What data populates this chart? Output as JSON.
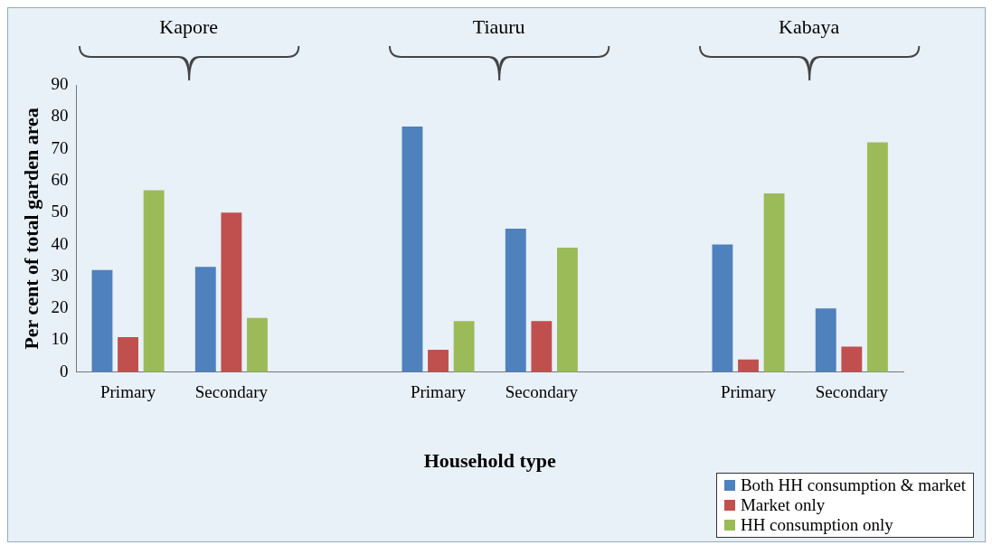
{
  "chart_data": {
    "type": "bar",
    "xlabel": "Household type",
    "ylabel": "Per cent of total garden area",
    "categories": [
      "Primary",
      "Secondary",
      null,
      "Primary",
      "Secondary",
      null,
      "Primary",
      "Secondary"
    ],
    "series": [
      {
        "name": "Both HH consumption & market",
        "color": "#4f81bd",
        "values": [
          32,
          33,
          null,
          77,
          45,
          null,
          40,
          20
        ]
      },
      {
        "name": "Market only",
        "color": "#c0504d",
        "values": [
          11,
          50,
          null,
          7,
          16,
          null,
          4,
          8
        ]
      },
      {
        "name": "HH consumption only",
        "color": "#9bbb59",
        "values": [
          57,
          17,
          null,
          16,
          39,
          null,
          56,
          72
        ]
      }
    ],
    "annotations": [
      "Kapore",
      "Tiauru",
      "Kabaya"
    ],
    "ylim": [
      0,
      90
    ],
    "yticks": [
      0,
      10,
      20,
      30,
      40,
      50,
      60,
      70,
      80,
      90
    ],
    "grid": false,
    "legend": "bottom right"
  }
}
